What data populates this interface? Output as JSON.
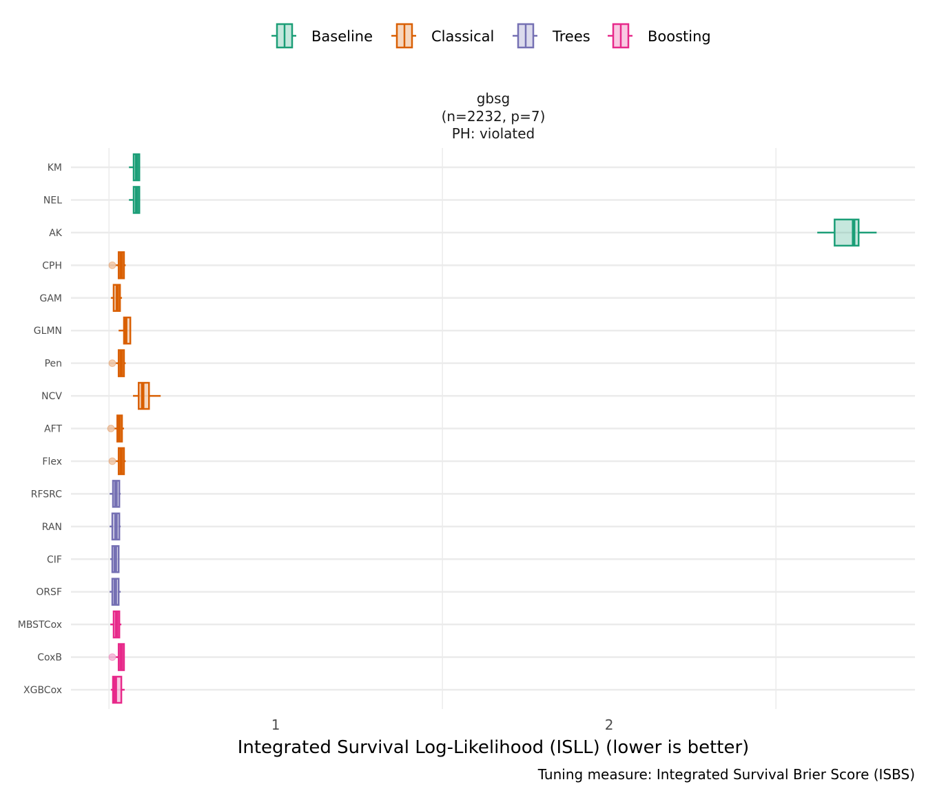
{
  "chart_data": {
    "type": "boxplot",
    "orientation": "horizontal",
    "title": [
      "gbsg",
      "(n=2232, p=7)",
      "PH: violated"
    ],
    "xlabel": "Integrated Survival Log-Likelihood (ISLL) (lower is better)",
    "caption": "Tuning measure: Integrated Survival Brier Score (ISBS)",
    "xlim": [
      0.386,
      2.917
    ],
    "xticks": [
      {
        "value": 1,
        "label": "1"
      },
      {
        "value": 2,
        "label": "2"
      }
    ],
    "minor_grid": [
      0.5,
      1.5,
      2.5
    ],
    "legend": {
      "placement": "top",
      "entries": [
        {
          "name": "Baseline",
          "color": "#1B9E77"
        },
        {
          "name": "Classical",
          "color": "#D95F02"
        },
        {
          "name": "Trees",
          "color": "#7570B3"
        },
        {
          "name": "Boosting",
          "color": "#E7298A"
        }
      ]
    },
    "series": [
      {
        "name": "KM",
        "group": "Baseline",
        "lo": 0.56,
        "q1": 0.574,
        "median": 0.583,
        "q3": 0.591,
        "hi": 0.591,
        "outliers": []
      },
      {
        "name": "NEL",
        "group": "Baseline",
        "lo": 0.56,
        "q1": 0.574,
        "median": 0.583,
        "q3": 0.591,
        "hi": 0.591,
        "outliers": []
      },
      {
        "name": "AK",
        "group": "Baseline",
        "lo": 2.624,
        "q1": 2.676,
        "median": 2.733,
        "q3": 2.748,
        "hi": 2.802,
        "outliers": []
      },
      {
        "name": "CPH",
        "group": "Classical",
        "lo": 0.521,
        "q1": 0.529,
        "median": 0.537,
        "q3": 0.545,
        "hi": 0.55,
        "outliers": [
          0.51
        ]
      },
      {
        "name": "GAM",
        "group": "Classical",
        "lo": 0.506,
        "q1": 0.514,
        "median": 0.525,
        "q3": 0.533,
        "hi": 0.539,
        "outliers": []
      },
      {
        "name": "GLMN",
        "group": "Classical",
        "lo": 0.529,
        "q1": 0.545,
        "median": 0.55,
        "q3": 0.564,
        "hi": 0.564,
        "outliers": []
      },
      {
        "name": "Pen",
        "group": "Classical",
        "lo": 0.521,
        "q1": 0.529,
        "median": 0.537,
        "q3": 0.545,
        "hi": 0.55,
        "outliers": [
          0.51
        ]
      },
      {
        "name": "NCV",
        "group": "Classical",
        "lo": 0.572,
        "q1": 0.589,
        "median": 0.601,
        "q3": 0.62,
        "hi": 0.655,
        "outliers": []
      },
      {
        "name": "AFT",
        "group": "Classical",
        "lo": 0.517,
        "q1": 0.525,
        "median": 0.531,
        "q3": 0.539,
        "hi": 0.545,
        "outliers": [
          0.506
        ]
      },
      {
        "name": "Flex",
        "group": "Classical",
        "lo": 0.521,
        "q1": 0.529,
        "median": 0.537,
        "q3": 0.545,
        "hi": 0.55,
        "outliers": [
          0.51
        ]
      },
      {
        "name": "RFSRC",
        "group": "Trees",
        "lo": 0.502,
        "q1": 0.512,
        "median": 0.521,
        "q3": 0.531,
        "hi": 0.535,
        "outliers": []
      },
      {
        "name": "RAN",
        "group": "Trees",
        "lo": 0.502,
        "q1": 0.51,
        "median": 0.521,
        "q3": 0.531,
        "hi": 0.535,
        "outliers": []
      },
      {
        "name": "CIF",
        "group": "Trees",
        "lo": 0.504,
        "q1": 0.51,
        "median": 0.519,
        "q3": 0.529,
        "hi": 0.531,
        "outliers": []
      },
      {
        "name": "ORSF",
        "group": "Trees",
        "lo": 0.502,
        "q1": 0.51,
        "median": 0.519,
        "q3": 0.529,
        "hi": 0.535,
        "outliers": []
      },
      {
        "name": "MBSTCox",
        "group": "Boosting",
        "lo": 0.504,
        "q1": 0.514,
        "median": 0.523,
        "q3": 0.531,
        "hi": 0.537,
        "outliers": []
      },
      {
        "name": "CoxB",
        "group": "Boosting",
        "lo": 0.521,
        "q1": 0.529,
        "median": 0.537,
        "q3": 0.545,
        "hi": 0.547,
        "outliers": [
          0.51
        ]
      },
      {
        "name": "XGBCox",
        "group": "Boosting",
        "lo": 0.506,
        "q1": 0.512,
        "median": 0.519,
        "q3": 0.537,
        "hi": 0.547,
        "outliers": []
      }
    ]
  }
}
